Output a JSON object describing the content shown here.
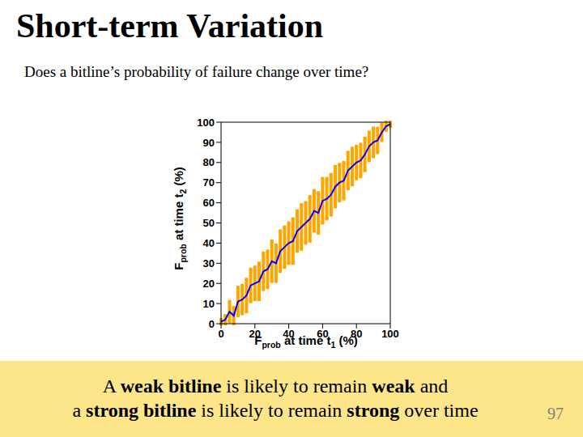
{
  "slide_title": "Short-term Variation",
  "question": "Does a bitline’s probability of failure change over time?",
  "caption": [
    [
      {
        "text": "A "
      },
      {
        "text": "weak bitline",
        "bold": true
      },
      {
        "text": " is likely to remain "
      },
      {
        "text": "weak",
        "bold": true
      },
      {
        "text": " and"
      }
    ],
    [
      {
        "text": "a "
      },
      {
        "text": "strong bitline",
        "bold": true
      },
      {
        "text": " is likely to remain "
      },
      {
        "text": "strong",
        "bold": true
      },
      {
        "text": " over time"
      }
    ]
  ],
  "page_number": 97,
  "chart_data": {
    "type": "line",
    "xlabel": [
      {
        "text": "F"
      },
      {
        "text": "prob",
        "sub": true
      },
      {
        "text": " at time t"
      },
      {
        "text": "1",
        "sub": true
      },
      {
        "text": " (%)"
      }
    ],
    "ylabel": [
      {
        "text": "F"
      },
      {
        "text": "prob",
        "sub": true
      },
      {
        "text": " at time t"
      },
      {
        "text": "2",
        "sub": true
      },
      {
        "text": " (%)"
      }
    ],
    "x": [
      0,
      2.5,
      5,
      7.5,
      10,
      12.5,
      15,
      17.5,
      20,
      22.5,
      25,
      27.5,
      30,
      32.5,
      35,
      37.5,
      40,
      42.5,
      45,
      47.5,
      50,
      52.5,
      55,
      57.5,
      60,
      62.5,
      65,
      67.5,
      70,
      72.5,
      75,
      77.5,
      80,
      82.5,
      85,
      87.5,
      90,
      92.5,
      95,
      97.5,
      100
    ],
    "values": [
      1,
      2,
      6,
      4,
      11,
      12,
      14,
      19,
      20,
      21,
      26,
      27,
      31,
      30,
      36,
      38,
      40,
      41,
      46,
      48,
      50,
      52,
      56,
      55,
      61,
      62,
      64,
      68,
      70,
      71,
      76,
      78,
      80,
      81,
      84,
      88,
      90,
      91,
      95,
      98,
      99
    ],
    "error": [
      1,
      2,
      5,
      4,
      7,
      7,
      8,
      8,
      8,
      9,
      9,
      9,
      10,
      9,
      10,
      10,
      10,
      11,
      10,
      11,
      10,
      11,
      10,
      10,
      11,
      10,
      10,
      10,
      9,
      9,
      9,
      9,
      8,
      8,
      8,
      7,
      7,
      6,
      4,
      2,
      1
    ],
    "color": "#0000ff",
    "xlim": [
      0,
      100
    ],
    "ylim": [
      0,
      100
    ],
    "xticks": [
      0,
      20,
      40,
      60,
      80,
      100
    ],
    "yticks": [
      0,
      10,
      20,
      30,
      40,
      50,
      60,
      70,
      80,
      90,
      100
    ],
    "grid": false
  }
}
